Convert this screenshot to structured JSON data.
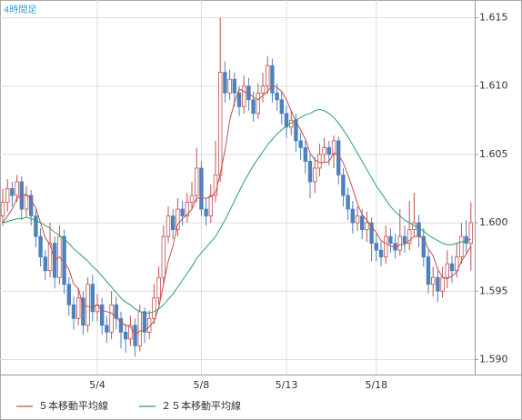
{
  "chart_data": {
    "type": "candlestick",
    "title": "4時間足",
    "categories": [
      null,
      null,
      null,
      null,
      null,
      null,
      null,
      null,
      null,
      null,
      null,
      null,
      null,
      null,
      null,
      null,
      null,
      null,
      null,
      null,
      "5/4",
      null,
      null,
      null,
      null,
      null,
      null,
      null,
      null,
      null,
      null,
      null,
      null,
      null,
      null,
      null,
      null,
      null,
      null,
      null,
      null,
      null,
      "5/8",
      null,
      null,
      null,
      null,
      null,
      null,
      null,
      null,
      null,
      null,
      null,
      null,
      null,
      null,
      null,
      null,
      null,
      "5/13",
      null,
      null,
      null,
      null,
      null,
      null,
      null,
      null,
      null,
      null,
      null,
      null,
      null,
      null,
      null,
      null,
      null,
      null,
      "5/18",
      null,
      null,
      null,
      null,
      null,
      null,
      null,
      null,
      null,
      null,
      null,
      null,
      null,
      null,
      null,
      null,
      null,
      null,
      null,
      null
    ],
    "open": [
      1.6005,
      1.6015,
      1.6025,
      1.602,
      1.603,
      1.601,
      1.602,
      1.6005,
      1.599,
      1.5975,
      1.5965,
      1.5985,
      1.596,
      1.599,
      1.5955,
      1.594,
      1.593,
      1.5945,
      1.5925,
      1.5955,
      1.5935,
      1.594,
      1.5925,
      1.592,
      1.594,
      1.593,
      1.592,
      1.5915,
      1.5925,
      1.591,
      1.5935,
      1.592,
      1.593,
      1.5945,
      1.596,
      1.599,
      1.6005,
      1.5995,
      1.601,
      1.6005,
      1.6015,
      1.602,
      1.604,
      1.601,
      1.6005,
      1.602,
      1.6035,
      1.611,
      1.6095,
      1.6105,
      1.6095,
      1.6085,
      1.61,
      1.609,
      1.608,
      1.6095,
      1.61,
      1.6115,
      1.6095,
      1.609,
      1.608,
      1.607,
      1.6075,
      1.606,
      1.6055,
      1.6045,
      1.603,
      1.604,
      1.605,
      1.6055,
      1.605,
      1.606,
      1.6035,
      1.602,
      1.601,
      1.6,
      1.6005,
      1.5995,
      1.6,
      1.5985,
      1.598,
      1.5975,
      1.599,
      1.5985,
      1.598,
      1.599,
      1.5985,
      1.5995,
      1.6,
      1.599,
      1.5975,
      1.5955,
      1.596,
      1.595,
      1.596,
      1.597,
      1.5965,
      1.5975,
      1.599,
      1.5985
    ],
    "high": [
      1.6025,
      1.6032,
      1.603,
      1.6035,
      1.6034,
      1.6027,
      1.6024,
      1.601,
      1.5996,
      1.598,
      1.6,
      1.599,
      1.5998,
      1.5995,
      1.596,
      1.5946,
      1.5952,
      1.595,
      1.596,
      1.5962,
      1.5948,
      1.5945,
      1.5932,
      1.595,
      1.5946,
      1.5935,
      1.5926,
      1.5932,
      1.593,
      1.594,
      1.5938,
      1.5936,
      1.5955,
      1.5968,
      1.5998,
      1.6012,
      1.601,
      1.6018,
      1.6016,
      1.6022,
      1.603,
      1.6055,
      1.6045,
      1.6018,
      1.6028,
      1.606,
      1.615,
      1.6118,
      1.6112,
      1.611,
      1.61,
      1.6108,
      1.6106,
      1.6096,
      1.6102,
      1.611,
      1.6122,
      1.612,
      1.6102,
      1.6096,
      1.6086,
      1.6082,
      1.608,
      1.6066,
      1.606,
      1.605,
      1.6048,
      1.6058,
      1.6062,
      1.606,
      1.6064,
      1.6063,
      1.604,
      1.6026,
      1.6016,
      1.6012,
      1.601,
      1.6008,
      1.6004,
      1.5992,
      1.5986,
      1.5998,
      1.5996,
      1.5992,
      1.601,
      1.5998,
      1.6016,
      1.6022,
      1.6006,
      1.5996,
      1.598,
      1.5968,
      1.5965,
      1.5968,
      1.598,
      1.5976,
      1.5985,
      1.6,
      1.6002,
      1.6015
    ],
    "low": [
      1.5998,
      1.6008,
      1.6012,
      1.6015,
      1.6002,
      1.6004,
      1.5998,
      1.5982,
      1.5968,
      1.5958,
      1.596,
      1.5952,
      1.5955,
      1.5948,
      1.5932,
      1.5922,
      1.5925,
      1.5918,
      1.592,
      1.5928,
      1.5928,
      1.5918,
      1.5912,
      1.5915,
      1.5922,
      1.5908,
      1.5905,
      1.591,
      1.5902,
      1.5906,
      1.5912,
      1.5915,
      1.5926,
      1.594,
      1.5955,
      1.5985,
      1.5988,
      1.599,
      1.5998,
      1.6,
      1.601,
      1.6015,
      1.6005,
      1.5998,
      1.6,
      1.6015,
      1.603,
      1.6088,
      1.609,
      1.6085,
      1.6078,
      1.608,
      1.6082,
      1.6074,
      1.6076,
      1.6088,
      1.6094,
      1.6088,
      1.6082,
      1.6072,
      1.6062,
      1.6064,
      1.6052,
      1.6046,
      1.6036,
      1.6018,
      1.6022,
      1.6034,
      1.6044,
      1.6042,
      1.604,
      1.6028,
      1.6012,
      1.6002,
      1.5992,
      1.5994,
      1.5988,
      1.5986,
      1.5972,
      1.5972,
      1.5968,
      1.597,
      1.5978,
      1.5974,
      1.5976,
      1.5978,
      1.598,
      1.599,
      1.5982,
      1.5968,
      1.5948,
      1.5946,
      1.5942,
      1.5945,
      1.5952,
      1.5956,
      1.596,
      1.597,
      1.5978,
      1.5965
    ],
    "close": [
      1.6015,
      1.6025,
      1.602,
      1.603,
      1.601,
      1.602,
      1.6005,
      1.599,
      1.5975,
      1.5965,
      1.5985,
      1.596,
      1.599,
      1.5955,
      1.594,
      1.593,
      1.5945,
      1.5925,
      1.5955,
      1.5935,
      1.594,
      1.5925,
      1.592,
      1.594,
      1.593,
      1.592,
      1.5915,
      1.5925,
      1.591,
      1.5935,
      1.592,
      1.593,
      1.5945,
      1.596,
      1.599,
      1.6005,
      1.5995,
      1.601,
      1.6005,
      1.6015,
      1.602,
      1.604,
      1.601,
      1.6005,
      1.602,
      1.6035,
      1.611,
      1.6095,
      1.6105,
      1.6095,
      1.6085,
      1.61,
      1.609,
      1.608,
      1.6095,
      1.61,
      1.6115,
      1.6095,
      1.609,
      1.608,
      1.607,
      1.6075,
      1.606,
      1.6055,
      1.6045,
      1.603,
      1.604,
      1.605,
      1.6055,
      1.605,
      1.606,
      1.6035,
      1.602,
      1.601,
      1.6,
      1.6005,
      1.5995,
      1.6,
      1.5985,
      1.598,
      1.5975,
      1.599,
      1.5985,
      1.598,
      1.599,
      1.5985,
      1.5995,
      1.6,
      1.599,
      1.5975,
      1.5955,
      1.596,
      1.595,
      1.596,
      1.597,
      1.5965,
      1.5975,
      1.599,
      1.5985,
      1.6
    ],
    "up_color": "#c0504d",
    "down_color": "#4f81bd",
    "series": [
      {
        "name": "５本移動平均線",
        "color": "#c0504d",
        "values": [
          1.6,
          1.6005,
          1.601,
          1.6018,
          1.602,
          1.6021,
          1.6017,
          1.6011,
          1.6,
          1.5989,
          1.5984,
          1.5973,
          1.5975,
          1.5971,
          1.5966,
          1.5955,
          1.5952,
          1.5939,
          1.5939,
          1.5938,
          1.594,
          1.5936,
          1.5935,
          1.5934,
          1.5931,
          1.5927,
          1.5925,
          1.5924,
          1.5918,
          1.5921,
          1.5921,
          1.5924,
          1.5928,
          1.5938,
          1.5955,
          1.5972,
          1.5983,
          1.5999,
          1.6003,
          1.6006,
          1.601,
          1.6018,
          1.6018,
          1.6018,
          1.6019,
          1.6022,
          1.6036,
          1.6053,
          1.6075,
          1.6088,
          1.6098,
          1.6096,
          1.6095,
          1.6092,
          1.609,
          1.6093,
          1.6096,
          1.6101,
          1.6099,
          1.6096,
          1.609,
          1.6082,
          1.6074,
          1.6068,
          1.6061,
          1.6051,
          1.6046,
          1.6044,
          1.6044,
          1.6045,
          1.6051,
          1.605,
          1.6044,
          1.6035,
          1.6025,
          1.6014,
          1.6006,
          1.6002,
          1.5997,
          1.5993,
          1.5987,
          1.5985,
          1.5983,
          1.5982,
          1.5984,
          1.5984,
          1.5987,
          1.599,
          1.599,
          1.5989,
          1.5981,
          1.5976,
          1.5966,
          1.596,
          1.5959,
          1.5961,
          1.5964,
          1.5972,
          1.5977,
          1.5983
        ]
      },
      {
        "name": "２５本移動平均線",
        "color": "#2e9e6e",
        "values": [
          1.6,
          1.6001,
          1.6002,
          1.6003,
          1.6003,
          1.6004,
          1.6003,
          1.6002,
          1.6,
          1.5998,
          1.5996,
          1.5993,
          1.5991,
          1.5988,
          1.5985,
          1.5981,
          1.5978,
          1.5975,
          1.5972,
          1.5968,
          1.5965,
          1.5961,
          1.5957,
          1.5953,
          1.5949,
          1.5945,
          1.5942,
          1.594,
          1.5937,
          1.5935,
          1.5934,
          1.5934,
          1.5935,
          1.5937,
          1.594,
          1.5944,
          1.5948,
          1.5953,
          1.5958,
          1.5963,
          1.5968,
          1.5974,
          1.5978,
          1.5982,
          1.5986,
          1.599,
          1.5996,
          1.6002,
          1.6009,
          1.6016,
          1.6023,
          1.603,
          1.6036,
          1.6042,
          1.6047,
          1.6052,
          1.6057,
          1.6061,
          1.6065,
          1.6068,
          1.6071,
          1.6073,
          1.6075,
          1.6077,
          1.6079,
          1.608,
          1.6082,
          1.6083,
          1.6082,
          1.608,
          1.6077,
          1.6073,
          1.6068,
          1.6063,
          1.6057,
          1.6051,
          1.6045,
          1.6039,
          1.6033,
          1.6027,
          1.6022,
          1.6017,
          1.6012,
          1.6008,
          1.6005,
          1.6002,
          1.6,
          1.5998,
          1.5996,
          1.5994,
          1.5991,
          1.5989,
          1.5987,
          1.5985,
          1.5984,
          1.5984,
          1.5985,
          1.5986,
          1.5987,
          1.5988
        ]
      }
    ],
    "ylim": [
      1.5889,
      1.6163
    ],
    "yticks": [
      {
        "value": 1.59,
        "label": "1.590"
      },
      1.595,
      {
        "value": 1.6,
        "label": "1.600"
      },
      1.605,
      {
        "value": 1.61,
        "label": "1.610"
      },
      1.615
    ],
    "grid": true
  }
}
